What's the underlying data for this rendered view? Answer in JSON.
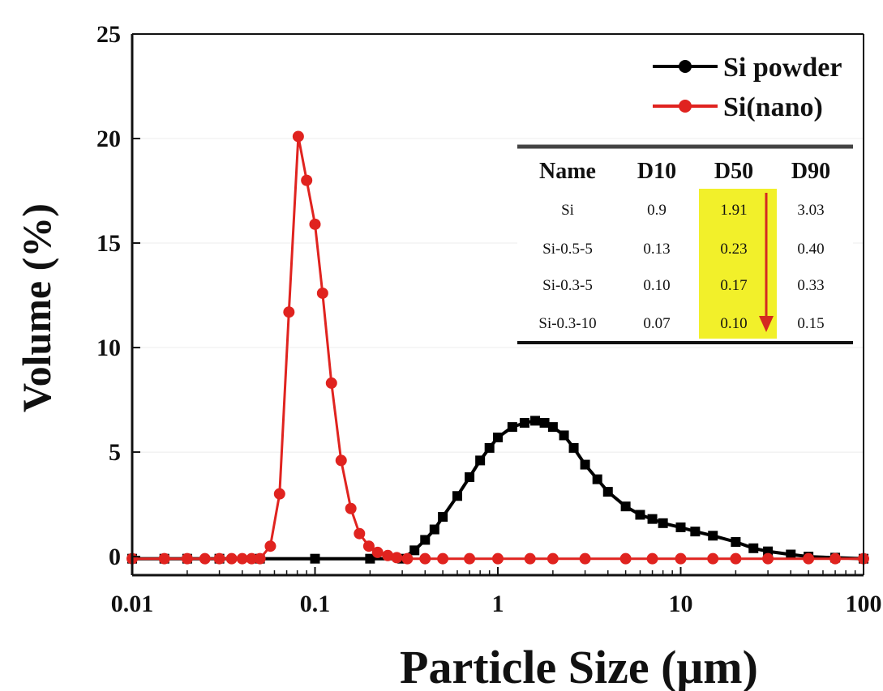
{
  "chart_data": {
    "type": "line",
    "xlabel": "Particle Size (μm)",
    "ylabel": "Volume (%)",
    "xscale": "log",
    "xlim": [
      0.01,
      100
    ],
    "ylim": [
      -0.5,
      25
    ],
    "x_ticks": [
      "0.01",
      "0.1",
      "1",
      "10",
      "100"
    ],
    "y_ticks": [
      "0",
      "5",
      "10",
      "15",
      "20",
      "25"
    ],
    "legend_position": "top-right",
    "series": [
      {
        "name": "Si powder",
        "color": "#000000",
        "marker": "square",
        "x": [
          0.01,
          0.015,
          0.02,
          0.03,
          0.05,
          0.1,
          0.2,
          0.3,
          0.35,
          0.4,
          0.45,
          0.5,
          0.6,
          0.7,
          0.8,
          0.9,
          1.0,
          1.2,
          1.4,
          1.6,
          1.8,
          2.0,
          2.3,
          2.6,
          3.0,
          3.5,
          4.0,
          5.0,
          6.0,
          7.0,
          8.0,
          10.0,
          12.0,
          15.0,
          20.0,
          25.0,
          30.0,
          40.0,
          50.0,
          70.0,
          100.0
        ],
        "y": [
          -0.1,
          -0.1,
          -0.1,
          -0.1,
          -0.1,
          -0.1,
          -0.1,
          -0.1,
          0.3,
          0.8,
          1.3,
          1.9,
          2.9,
          3.8,
          4.6,
          5.2,
          5.7,
          6.2,
          6.4,
          6.5,
          6.4,
          6.2,
          5.8,
          5.2,
          4.4,
          3.7,
          3.1,
          2.4,
          2.0,
          1.8,
          1.6,
          1.4,
          1.2,
          1.0,
          0.7,
          0.4,
          0.25,
          0.1,
          0.0,
          -0.05,
          -0.1
        ]
      },
      {
        "name": "Si(nano)",
        "color": "#e0231f",
        "marker": "circle",
        "x": [
          0.01,
          0.015,
          0.02,
          0.025,
          0.03,
          0.035,
          0.04,
          0.045,
          0.05,
          0.057,
          0.064,
          0.072,
          0.081,
          0.09,
          0.1,
          0.11,
          0.123,
          0.139,
          0.157,
          0.175,
          0.197,
          0.22,
          0.25,
          0.28,
          0.32,
          0.4,
          0.5,
          0.7,
          1,
          1.5,
          2,
          3,
          5,
          7,
          10,
          15,
          20,
          30,
          50,
          70,
          100
        ],
        "y": [
          -0.1,
          -0.1,
          -0.1,
          -0.1,
          -0.1,
          -0.1,
          -0.1,
          -0.1,
          -0.1,
          0.5,
          3.0,
          11.7,
          20.1,
          18.0,
          15.9,
          12.6,
          8.3,
          4.6,
          2.3,
          1.1,
          0.5,
          0.2,
          0.05,
          -0.05,
          -0.1,
          -0.1,
          -0.1,
          -0.1,
          -0.1,
          -0.1,
          -0.1,
          -0.1,
          -0.1,
          -0.1,
          -0.1,
          -0.1,
          -0.1,
          -0.1,
          -0.1,
          -0.1,
          -0.1
        ]
      }
    ],
    "inset_table": {
      "headers": [
        "Name",
        "D10",
        "D50",
        "D90"
      ],
      "rows": [
        [
          "Si",
          "0.9",
          "1.91",
          "3.03"
        ],
        [
          "Si-0.5-5",
          "0.13",
          "0.23",
          "0.40"
        ],
        [
          "Si-0.3-5",
          "0.10",
          "0.17",
          "0.33"
        ],
        [
          "Si-0.3-10",
          "0.07",
          "0.10",
          "0.15"
        ]
      ],
      "highlight_column": "D50",
      "highlight_color": "#f2f02a",
      "arrow_color": "#d42a20"
    }
  }
}
